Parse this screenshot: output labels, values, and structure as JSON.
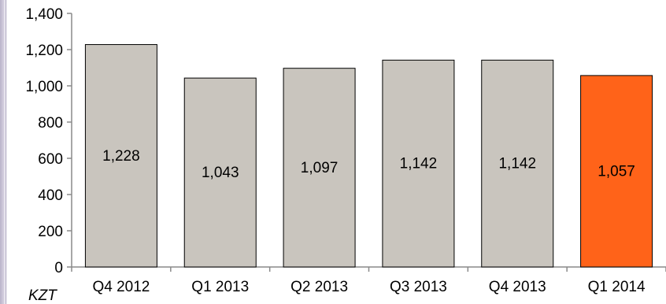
{
  "chart_data": {
    "type": "bar",
    "categories": [
      "Q4 2012",
      "Q1 2013",
      "Q2 2013",
      "Q3 2013",
      "Q4 2013",
      "Q1 2014"
    ],
    "values": [
      1228,
      1043,
      1097,
      1142,
      1142,
      1057
    ],
    "value_labels": [
      "1,228",
      "1,043",
      "1,097",
      "1,142",
      "1,142",
      "1,057"
    ],
    "y_ticks": [
      0,
      200,
      400,
      600,
      800,
      1000,
      1200,
      1400
    ],
    "y_tick_labels": [
      "0",
      "200",
      "400",
      "600",
      "800",
      "1,000",
      "1,200",
      "1,400"
    ],
    "ylim": [
      0,
      1400
    ],
    "unit_label": "KZT",
    "title": "",
    "xlabel": "",
    "ylabel": "",
    "grid": false,
    "legend": "none",
    "colors": {
      "default_bar": "#c9c5be",
      "highlight_bar": "#ff6319",
      "bar_stroke": "#000000"
    },
    "highlight_index": 5
  }
}
